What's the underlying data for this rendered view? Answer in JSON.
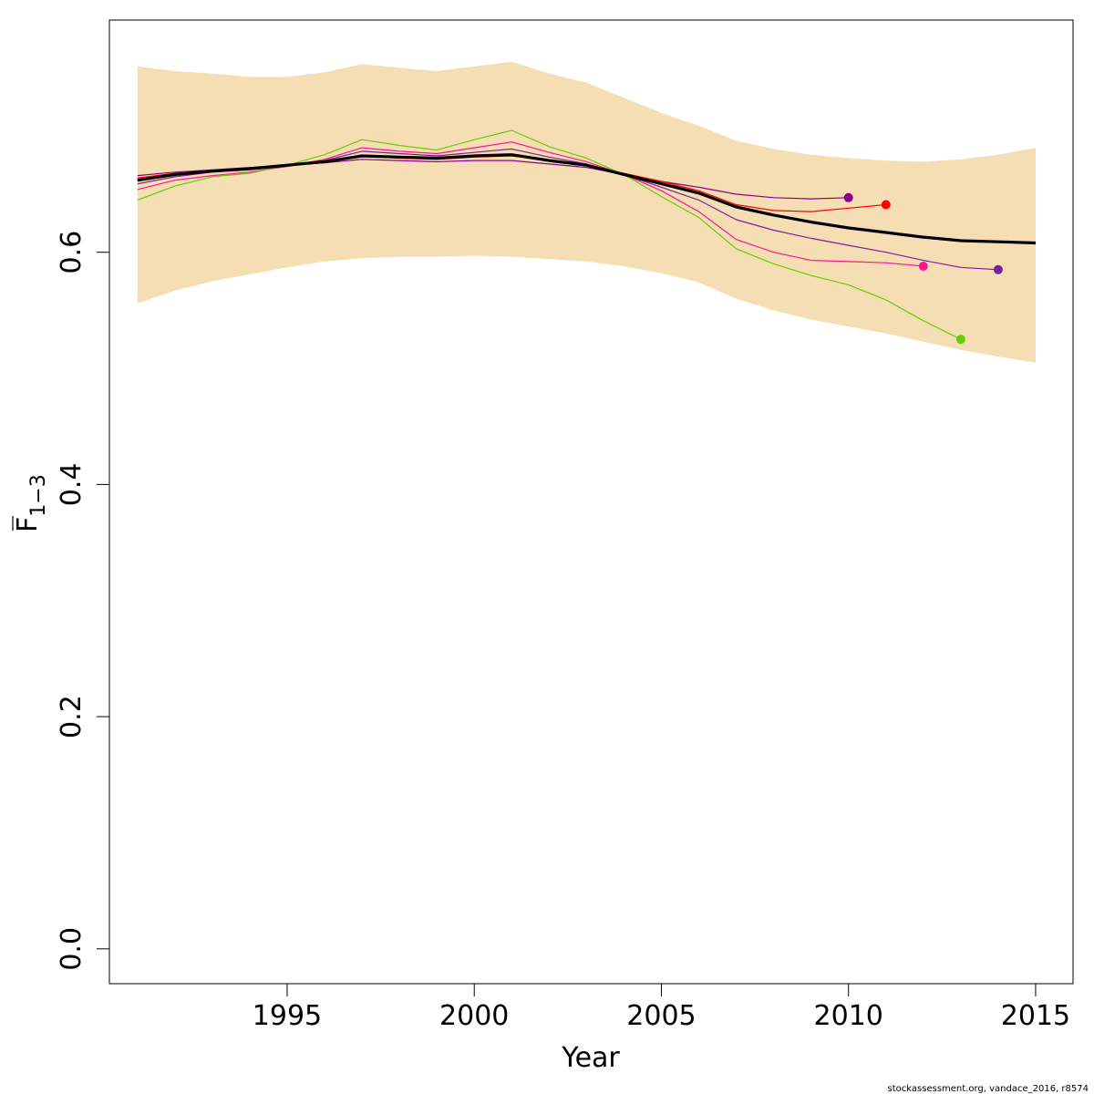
{
  "chart_data": {
    "type": "line",
    "xlabel": "Year",
    "ylabel_main": "F",
    "ylabel_sub": "1−3",
    "xlim": [
      1990.25,
      2016.0
    ],
    "ylim": [
      -0.03,
      0.8
    ],
    "x_ticks": [
      1995,
      2000,
      2005,
      2010,
      2015
    ],
    "y_ticks": [
      0.0,
      0.2,
      0.4,
      0.6
    ],
    "x_tick_labels": [
      "1995",
      "2000",
      "2005",
      "2010",
      "2015"
    ],
    "y_tick_labels": [
      "0.0",
      "0.2",
      "0.4",
      "0.6"
    ],
    "confidence_band": {
      "color": "#f5deb3",
      "x": [
        1991,
        1992,
        1993,
        1994,
        1995,
        1996,
        1997,
        1998,
        1999,
        2000,
        2001,
        2002,
        2003,
        2004,
        2005,
        2006,
        2007,
        2008,
        2009,
        2010,
        2011,
        2012,
        2013,
        2014,
        2015
      ],
      "upper": [
        0.76,
        0.756,
        0.754,
        0.751,
        0.751,
        0.755,
        0.762,
        0.759,
        0.756,
        0.76,
        0.764,
        0.754,
        0.746,
        0.733,
        0.72,
        0.709,
        0.696,
        0.689,
        0.684,
        0.681,
        0.679,
        0.678,
        0.68,
        0.684,
        0.69
      ],
      "lower": [
        0.556,
        0.567,
        0.575,
        0.581,
        0.587,
        0.592,
        0.595,
        0.596,
        0.596,
        0.597,
        0.596,
        0.594,
        0.592,
        0.588,
        0.582,
        0.574,
        0.56,
        0.55,
        0.542,
        0.536,
        0.53,
        0.523,
        0.516,
        0.51,
        0.505
      ]
    },
    "series": [
      {
        "color": "#000000",
        "width": 3.2,
        "end_point": false,
        "x": [
          1991,
          1992,
          1993,
          1994,
          1995,
          1996,
          1997,
          1998,
          1999,
          2000,
          2001,
          2002,
          2003,
          2004,
          2005,
          2006,
          2007,
          2008,
          2009,
          2010,
          2011,
          2012,
          2013,
          2014,
          2015
        ],
        "y": [
          0.662,
          0.667,
          0.67,
          0.672,
          0.675,
          0.678,
          0.683,
          0.682,
          0.681,
          0.683,
          0.684,
          0.679,
          0.675,
          0.667,
          0.659,
          0.651,
          0.639,
          0.632,
          0.626,
          0.621,
          0.617,
          0.613,
          0.61,
          0.609,
          0.608
        ]
      },
      {
        "color": "#8b008b",
        "width": 1.2,
        "end_point": true,
        "x": [
          1991,
          1992,
          1993,
          1994,
          1995,
          1996,
          1997,
          1998,
          1999,
          2000,
          2001,
          2002,
          2003,
          2004,
          2005,
          2006,
          2007,
          2008,
          2009,
          2010
        ],
        "y": [
          0.666,
          0.669,
          0.671,
          0.673,
          0.675,
          0.677,
          0.68,
          0.679,
          0.678,
          0.679,
          0.679,
          0.676,
          0.673,
          0.667,
          0.661,
          0.656,
          0.65,
          0.647,
          0.646,
          0.647
        ]
      },
      {
        "color": "#ff0000",
        "width": 1.2,
        "end_point": true,
        "x": [
          1991,
          1992,
          1993,
          1994,
          1995,
          1996,
          1997,
          1998,
          1999,
          2000,
          2001,
          2002,
          2003,
          2004,
          2005,
          2006,
          2007,
          2008,
          2009,
          2010,
          2011
        ],
        "y": [
          0.664,
          0.668,
          0.67,
          0.672,
          0.675,
          0.678,
          0.683,
          0.681,
          0.68,
          0.682,
          0.683,
          0.679,
          0.675,
          0.668,
          0.661,
          0.653,
          0.641,
          0.636,
          0.635,
          0.638,
          0.641
        ]
      },
      {
        "color": "#ff1493",
        "width": 1.2,
        "end_point": true,
        "x": [
          1991,
          1992,
          1993,
          1994,
          1995,
          1996,
          1997,
          1998,
          1999,
          2000,
          2001,
          2002,
          2003,
          2004,
          2005,
          2006,
          2007,
          2008,
          2009,
          2010,
          2011,
          2012
        ],
        "y": [
          0.654,
          0.662,
          0.666,
          0.669,
          0.674,
          0.68,
          0.69,
          0.687,
          0.685,
          0.69,
          0.695,
          0.686,
          0.678,
          0.667,
          0.653,
          0.635,
          0.611,
          0.6,
          0.593,
          0.592,
          0.591,
          0.588
        ]
      },
      {
        "color": "#66cd00",
        "width": 1.2,
        "end_point": true,
        "x": [
          1991,
          1992,
          1993,
          1994,
          1995,
          1996,
          1997,
          1998,
          1999,
          2000,
          2001,
          2002,
          2003,
          2004,
          2005,
          2006,
          2007,
          2008,
          2009,
          2010,
          2011,
          2012,
          2013
        ],
        "y": [
          0.645,
          0.657,
          0.665,
          0.668,
          0.675,
          0.684,
          0.697,
          0.692,
          0.688,
          0.697,
          0.705,
          0.691,
          0.681,
          0.667,
          0.648,
          0.63,
          0.603,
          0.59,
          0.58,
          0.572,
          0.559,
          0.541,
          0.525
        ]
      },
      {
        "color": "#7b1fa2",
        "width": 1.2,
        "end_point": true,
        "x": [
          1991,
          1992,
          1993,
          1994,
          1995,
          1996,
          1997,
          1998,
          1999,
          2000,
          2001,
          2002,
          2003,
          2004,
          2005,
          2006,
          2007,
          2008,
          2009,
          2010,
          2011,
          2012,
          2013,
          2014
        ],
        "y": [
          0.659,
          0.665,
          0.669,
          0.671,
          0.674,
          0.679,
          0.687,
          0.685,
          0.683,
          0.686,
          0.689,
          0.682,
          0.676,
          0.667,
          0.656,
          0.645,
          0.628,
          0.619,
          0.612,
          0.606,
          0.6,
          0.593,
          0.587,
          0.585
        ]
      }
    ]
  },
  "footer_text": "stockassessment.org, vandace_2016, r8574"
}
